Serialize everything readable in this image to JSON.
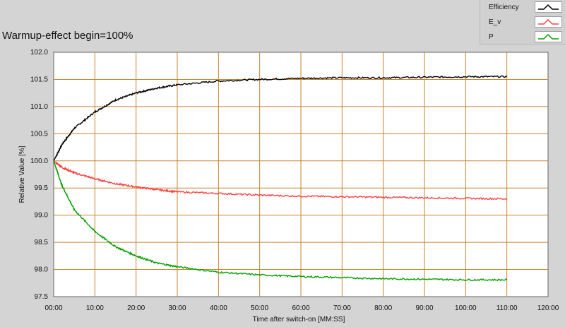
{
  "chart_data": {
    "type": "line",
    "title": "Warmup-effect begin=100%",
    "xlabel": "Time after switch-on [MM:SS]",
    "ylabel": "Relative Value [%]",
    "xlim": [
      0,
      120
    ],
    "ylim": [
      97.5,
      102.0
    ],
    "xticks": [
      0,
      10,
      20,
      30,
      40,
      50,
      60,
      70,
      80,
      90,
      100,
      110,
      120
    ],
    "xtick_labels": [
      "00:00",
      "10:00",
      "20:00",
      "30:00",
      "40:00",
      "50:00",
      "60:00",
      "70:00",
      "80:00",
      "90:00",
      "100:00",
      "110:00",
      "120:00"
    ],
    "yticks": [
      97.5,
      98.0,
      98.5,
      99.0,
      99.5,
      100.0,
      100.5,
      101.0,
      101.5,
      102.0
    ],
    "ytick_labels": [
      "97.5",
      "98.0",
      "98.5",
      "99.0",
      "99.5",
      "100.0",
      "100.5",
      "101.0",
      "101.5",
      "102.0"
    ],
    "grid": true,
    "legend_position": "top-right",
    "series": [
      {
        "name": "Efficiency",
        "color": "#000000",
        "x": [
          0,
          2,
          5,
          10,
          15,
          20,
          25,
          30,
          40,
          50,
          60,
          70,
          80,
          90,
          100,
          110
        ],
        "y": [
          100.0,
          100.3,
          100.6,
          100.9,
          101.12,
          101.25,
          101.34,
          101.4,
          101.47,
          101.5,
          101.52,
          101.53,
          101.53,
          101.54,
          101.55,
          101.55
        ]
      },
      {
        "name": "E_v",
        "color": "#ff4040",
        "x": [
          0,
          2,
          5,
          10,
          15,
          20,
          25,
          30,
          40,
          50,
          60,
          70,
          80,
          90,
          100,
          110
        ],
        "y": [
          100.0,
          99.88,
          99.78,
          99.67,
          99.58,
          99.52,
          99.47,
          99.43,
          99.4,
          99.37,
          99.35,
          99.34,
          99.33,
          99.32,
          99.31,
          99.3
        ]
      },
      {
        "name": "P",
        "color": "#00a000",
        "x": [
          0,
          2,
          5,
          10,
          15,
          20,
          25,
          30,
          40,
          50,
          60,
          70,
          80,
          90,
          100,
          110
        ],
        "y": [
          100.0,
          99.55,
          99.1,
          98.7,
          98.42,
          98.25,
          98.12,
          98.05,
          97.95,
          97.9,
          97.87,
          97.85,
          97.83,
          97.82,
          97.81,
          97.81
        ]
      }
    ]
  }
}
